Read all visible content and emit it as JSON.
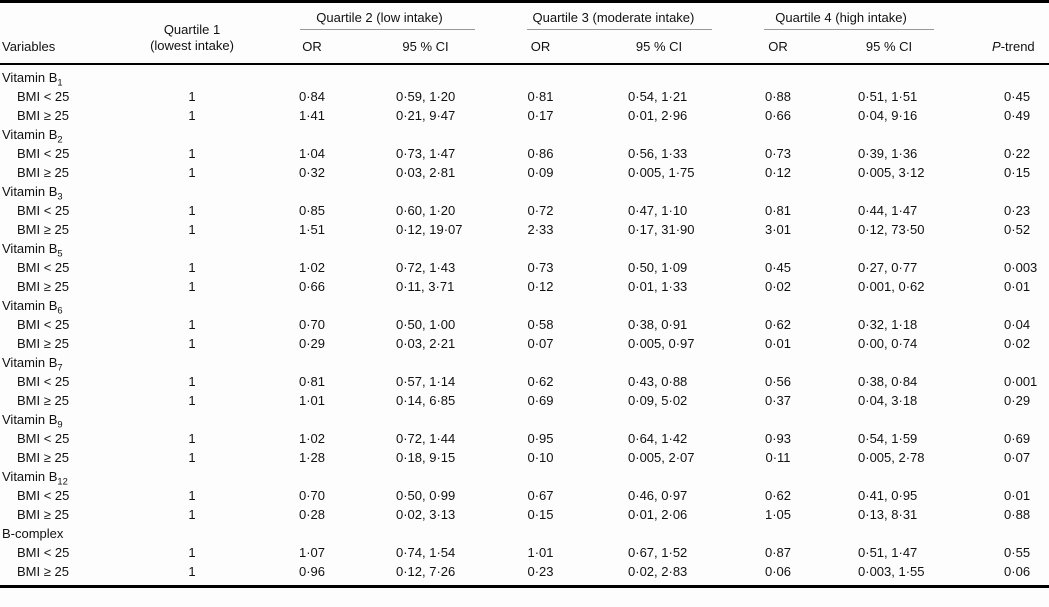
{
  "header": {
    "variables": "Variables",
    "quartile1_line1": "Quartile 1",
    "quartile1_line2": "(lowest intake)",
    "quartile2": "Quartile 2 (low intake)",
    "quartile3": "Quartile 3 (moderate intake)",
    "quartile4": "Quartile 4 (high intake)",
    "or": "OR",
    "ci": "95 % CI",
    "p_italic": "P",
    "p_suffix": "-trend"
  },
  "sections": [
    {
      "name": "Vitamin B",
      "sub": "1",
      "rows": [
        {
          "label": "BMI < 25",
          "q1": "1",
          "q2_or": "0·84",
          "q2_ci": "0·59, 1·20",
          "q3_or": "0·81",
          "q3_ci": "0·54, 1·21",
          "q4_or": "0·88",
          "q4_ci": "0·51, 1·51",
          "p": "0·45"
        },
        {
          "label": "BMI ≥ 25",
          "q1": "1",
          "q2_or": "1·41",
          "q2_ci": "0·21, 9·47",
          "q3_or": "0·17",
          "q3_ci": "0·01, 2·96",
          "q4_or": "0·66",
          "q4_ci": "0·04, 9·16",
          "p": "0·49"
        }
      ]
    },
    {
      "name": "Vitamin B",
      "sub": "2",
      "rows": [
        {
          "label": "BMI < 25",
          "q1": "1",
          "q2_or": "1·04",
          "q2_ci": "0·73, 1·47",
          "q3_or": "0·86",
          "q3_ci": "0·56, 1·33",
          "q4_or": "0·73",
          "q4_ci": "0·39, 1·36",
          "p": "0·22"
        },
        {
          "label": "BMI ≥ 25",
          "q1": "1",
          "q2_or": "0·32",
          "q2_ci": "0·03, 2·81",
          "q3_or": "0·09",
          "q3_ci": "0·005, 1·75",
          "q4_or": "0·12",
          "q4_ci": "0·005, 3·12",
          "p": "0·15"
        }
      ]
    },
    {
      "name": "Vitamin B",
      "sub": "3",
      "rows": [
        {
          "label": "BMI < 25",
          "q1": "1",
          "q2_or": "0·85",
          "q2_ci": "0·60, 1·20",
          "q3_or": "0·72",
          "q3_ci": "0·47, 1·10",
          "q4_or": "0·81",
          "q4_ci": "0·44, 1·47",
          "p": "0·23"
        },
        {
          "label": "BMI ≥ 25",
          "q1": "1",
          "q2_or": "1·51",
          "q2_ci": "0·12, 19·07",
          "q3_or": "2·33",
          "q3_ci": "0·17, 31·90",
          "q4_or": "3·01",
          "q4_ci": "0·12, 73·50",
          "p": "0·52"
        }
      ]
    },
    {
      "name": "Vitamin B",
      "sub": "5",
      "rows": [
        {
          "label": "BMI < 25",
          "q1": "1",
          "q2_or": "1·02",
          "q2_ci": "0·72, 1·43",
          "q3_or": "0·73",
          "q3_ci": "0·50, 1·09",
          "q4_or": "0·45",
          "q4_ci": "0·27, 0·77",
          "p": "0·003"
        },
        {
          "label": "BMI ≥ 25",
          "q1": "1",
          "q2_or": "0·66",
          "q2_ci": "0·11, 3·71",
          "q3_or": "0·12",
          "q3_ci": "0·01, 1·33",
          "q4_or": "0·02",
          "q4_ci": "0·001, 0·62",
          "p": "0·01"
        }
      ]
    },
    {
      "name": "Vitamin B",
      "sub": "6",
      "rows": [
        {
          "label": "BMI < 25",
          "q1": "1",
          "q2_or": "0·70",
          "q2_ci": "0·50, 1·00",
          "q3_or": "0·58",
          "q3_ci": "0·38, 0·91",
          "q4_or": "0·62",
          "q4_ci": "0·32, 1·18",
          "p": "0·04"
        },
        {
          "label": "BMI ≥ 25",
          "q1": "1",
          "q2_or": "0·29",
          "q2_ci": "0·03, 2·21",
          "q3_or": "0·07",
          "q3_ci": "0·005, 0·97",
          "q4_or": "0·01",
          "q4_ci": "0·00, 0·74",
          "p": "0·02"
        }
      ]
    },
    {
      "name": "Vitamin B",
      "sub": "7",
      "rows": [
        {
          "label": "BMI < 25",
          "q1": "1",
          "q2_or": "0·81",
          "q2_ci": "0·57, 1·14",
          "q3_or": "0·62",
          "q3_ci": "0·43, 0·88",
          "q4_or": "0·56",
          "q4_ci": "0·38, 0·84",
          "p": "0·001"
        },
        {
          "label": "BMI ≥ 25",
          "q1": "1",
          "q2_or": "1·01",
          "q2_ci": "0·14, 6·85",
          "q3_or": "0·69",
          "q3_ci": "0·09, 5·02",
          "q4_or": "0·37",
          "q4_ci": "0·04, 3·18",
          "p": "0·29"
        }
      ]
    },
    {
      "name": "Vitamin B",
      "sub": "9",
      "rows": [
        {
          "label": "BMI < 25",
          "q1": "1",
          "q2_or": "1·02",
          "q2_ci": "0·72, 1·44",
          "q3_or": "0·95",
          "q3_ci": "0·64, 1·42",
          "q4_or": "0·93",
          "q4_ci": "0·54, 1·59",
          "p": "0·69"
        },
        {
          "label": "BMI ≥ 25",
          "q1": "1",
          "q2_or": "1·28",
          "q2_ci": "0·18, 9·15",
          "q3_or": "0·10",
          "q3_ci": "0·005, 2·07",
          "q4_or": "0·11",
          "q4_ci": "0·005, 2·78",
          "p": "0·07"
        }
      ]
    },
    {
      "name": "Vitamin B",
      "sub": "12",
      "rows": [
        {
          "label": "BMI < 25",
          "q1": "1",
          "q2_or": "0·70",
          "q2_ci": "0·50, 0·99",
          "q3_or": "0·67",
          "q3_ci": "0·46, 0·97",
          "q4_or": "0·62",
          "q4_ci": "0·41, 0·95",
          "p": "0·01"
        },
        {
          "label": "BMI ≥ 25",
          "q1": "1",
          "q2_or": "0·28",
          "q2_ci": "0·02, 3·13",
          "q3_or": "0·15",
          "q3_ci": "0·01, 2·06",
          "q4_or": "1·05",
          "q4_ci": "0·13, 8·31",
          "p": "0·88"
        }
      ]
    },
    {
      "name": "B-complex",
      "sub": "",
      "rows": [
        {
          "label": "BMI < 25",
          "q1": "1",
          "q2_or": "1·07",
          "q2_ci": "0·74, 1·54",
          "q3_or": "1·01",
          "q3_ci": "0·67, 1·52",
          "q4_or": "0·87",
          "q4_ci": "0·51, 1·47",
          "p": "0·55"
        },
        {
          "label": "BMI ≥ 25",
          "q1": "1",
          "q2_or": "0·96",
          "q2_ci": "0·12, 7·26",
          "q3_or": "0·23",
          "q3_ci": "0·02, 2·83",
          "q4_or": "0·06",
          "q4_ci": "0·003, 1·55",
          "p": "0·06"
        }
      ]
    }
  ]
}
